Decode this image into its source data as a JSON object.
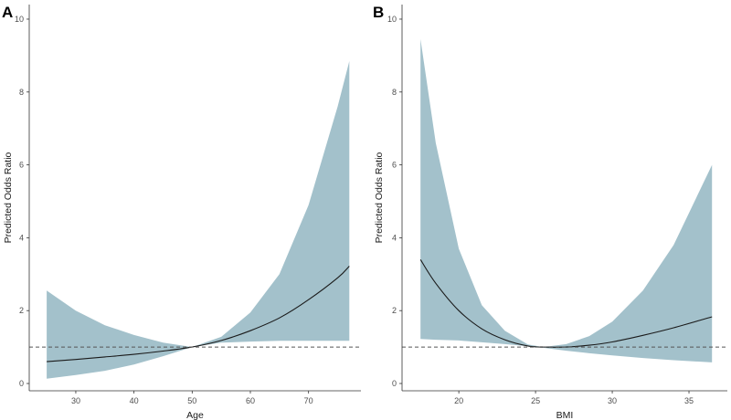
{
  "colors": {
    "ribbon": "#a3c1cb",
    "curve": "#1a1a1a",
    "reference": "#555555",
    "axis": "#333333"
  },
  "chart_data": [
    {
      "panel": "A",
      "type": "area",
      "xlabel": "Age",
      "ylabel": "Predicted Odds Ratio",
      "xlim": [
        22,
        79
      ],
      "ylim": [
        -0.2,
        10.4
      ],
      "xticks": [
        30,
        40,
        50,
        60,
        70
      ],
      "yticks": [
        0,
        2,
        4,
        6,
        8,
        10
      ],
      "reference_line": 1,
      "grid": false,
      "series": [
        {
          "x": [
            25,
            30,
            35,
            40,
            45,
            50,
            55,
            60,
            65,
            70,
            75,
            77
          ],
          "estimate": [
            0.6,
            0.66,
            0.73,
            0.8,
            0.89,
            1.0,
            1.18,
            1.45,
            1.8,
            2.3,
            2.9,
            3.22
          ],
          "lower": [
            0.13,
            0.23,
            0.35,
            0.52,
            0.75,
            1.0,
            1.12,
            1.15,
            1.17,
            1.17,
            1.17,
            1.17
          ],
          "upper": [
            2.55,
            2.0,
            1.6,
            1.33,
            1.12,
            1.0,
            1.28,
            1.95,
            3.0,
            4.9,
            7.6,
            8.85
          ]
        }
      ]
    },
    {
      "panel": "B",
      "type": "area",
      "xlabel": "BMI",
      "ylabel": "Predicted Odds Ratio",
      "xlim": [
        16.3,
        37.5
      ],
      "ylim": [
        -0.2,
        10.4
      ],
      "xticks": [
        20,
        25,
        30,
        35
      ],
      "yticks": [
        0,
        2,
        4,
        6,
        8,
        10
      ],
      "reference_line": 1,
      "grid": false,
      "series": [
        {
          "x": [
            17.5,
            18.5,
            20,
            21.5,
            23,
            24.5,
            25.5,
            27,
            28.5,
            30,
            32,
            34,
            36.5
          ],
          "estimate": [
            3.4,
            2.75,
            2.0,
            1.5,
            1.2,
            1.03,
            1.0,
            1.0,
            1.05,
            1.14,
            1.32,
            1.53,
            1.83
          ],
          "lower": [
            1.22,
            1.2,
            1.18,
            1.13,
            1.08,
            1.02,
            0.98,
            0.9,
            0.83,
            0.77,
            0.7,
            0.64,
            0.58
          ],
          "upper": [
            9.45,
            6.6,
            3.7,
            2.15,
            1.45,
            1.07,
            1.0,
            1.08,
            1.3,
            1.7,
            2.55,
            3.8,
            6.0
          ]
        }
      ]
    }
  ]
}
